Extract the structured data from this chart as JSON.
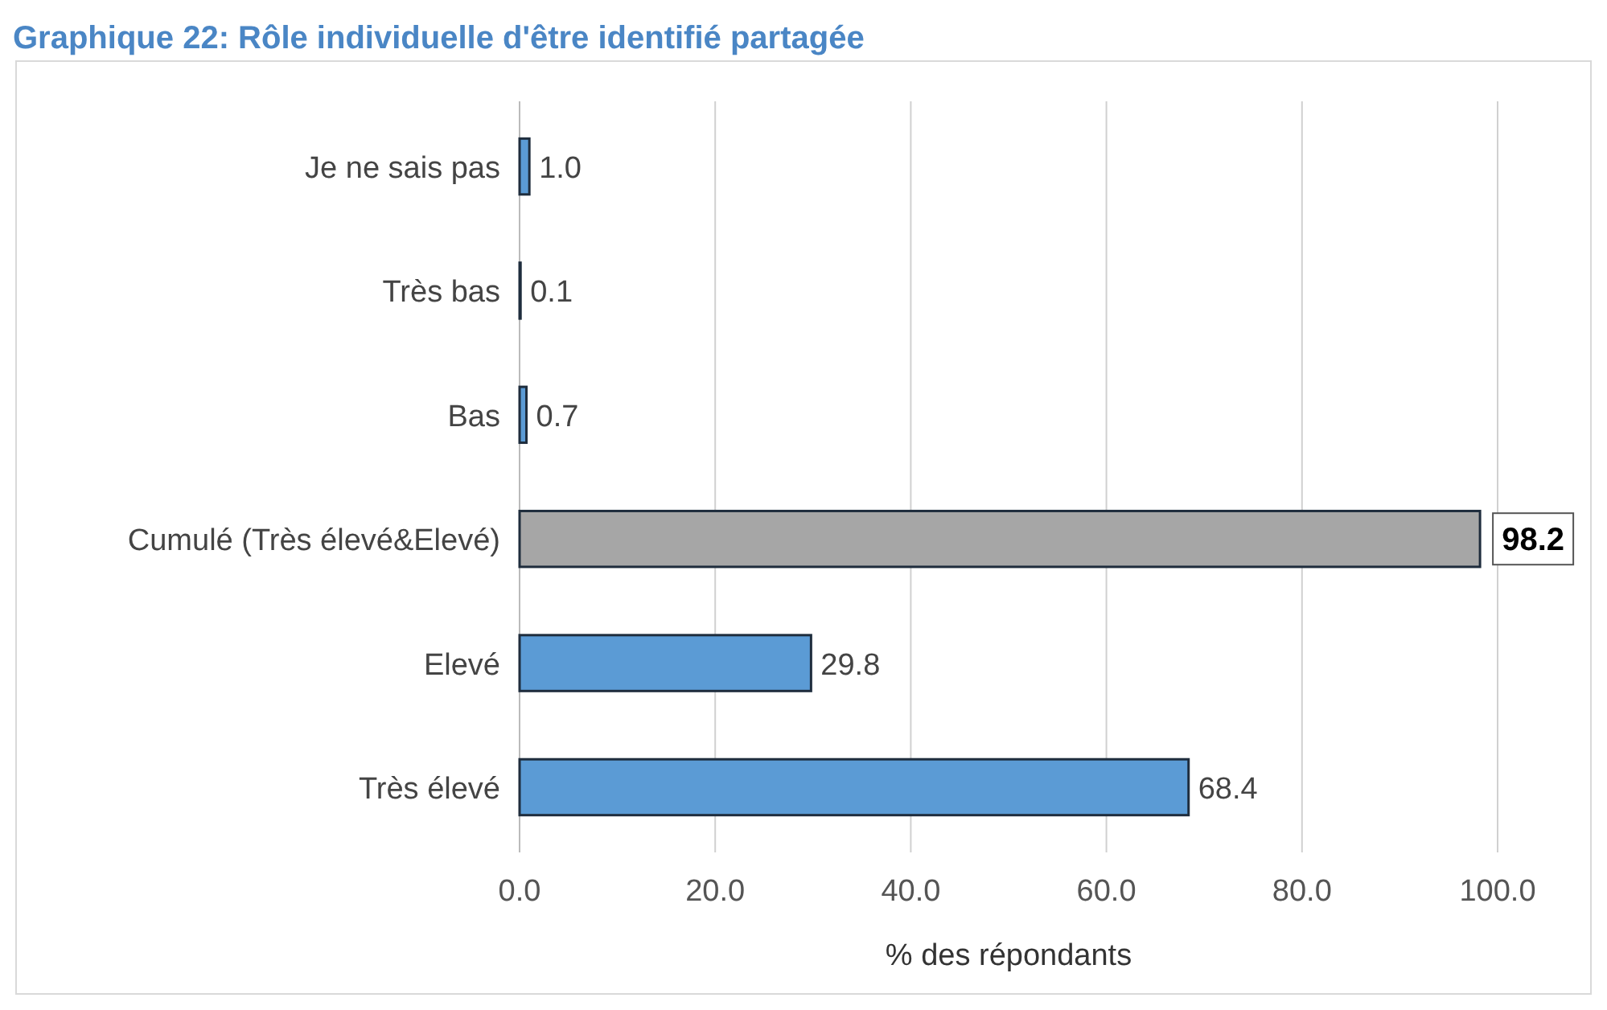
{
  "chart_data": {
    "type": "bar",
    "orientation": "horizontal",
    "title": "Graphique 22: Rôle individuelle d'être identifié partagée",
    "xlabel": "% des répondants",
    "categories": [
      "Je ne sais pas",
      "Très bas",
      "Bas",
      "Cumulé (Très élevé&Elevé)",
      "Elevé",
      "Très élevé"
    ],
    "values": [
      1.0,
      0.1,
      0.7,
      98.2,
      29.8,
      68.4
    ],
    "value_labels": [
      "1.0",
      "0.1",
      "0.7",
      "98.2",
      "29.8",
      "68.4"
    ],
    "colors": [
      "#5b9bd5",
      "#5b9bd5",
      "#5b9bd5",
      "#a6a6a6",
      "#5b9bd5",
      "#5b9bd5"
    ],
    "xlim": [
      0,
      100
    ],
    "xticks": [
      {
        "value": 0,
        "label": "0.0"
      },
      {
        "value": 20,
        "label": "20.0"
      },
      {
        "value": 40,
        "label": "40.0"
      },
      {
        "value": 60,
        "label": "60.0"
      },
      {
        "value": 80,
        "label": "80.0"
      },
      {
        "value": 100,
        "label": "100.0"
      }
    ],
    "grid": "x"
  }
}
